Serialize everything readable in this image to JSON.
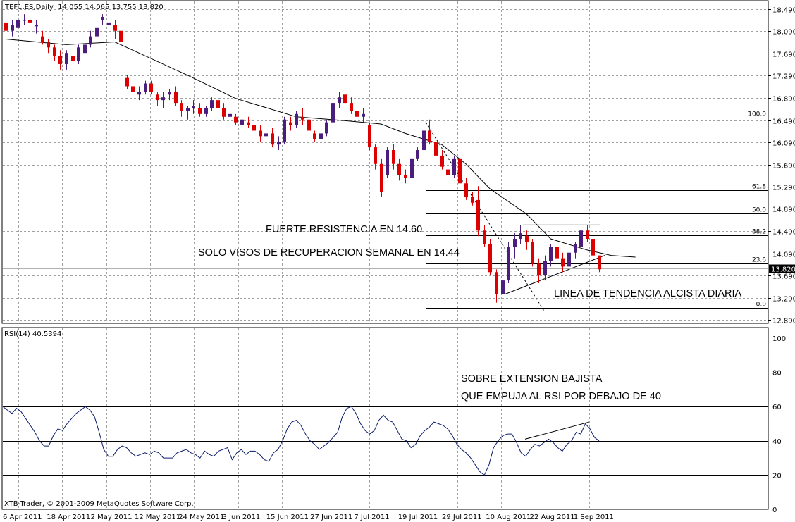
{
  "chart_data": [
    {
      "type": "candlestick",
      "header": {
        "symbol": "TEF1.ES,Daily",
        "ohlc": "14.055 14.065 13.755 13.820"
      },
      "price_axis": {
        "ylim": [
          12.89,
          18.49
        ],
        "ticks": [
          "18.490",
          "18.090",
          "17.690",
          "17.290",
          "16.890",
          "16.490",
          "16.090",
          "15.690",
          "15.290",
          "14.890",
          "14.490",
          "14.090",
          "13.690",
          "13.290",
          "12.890"
        ]
      },
      "last_price": {
        "label": "13.820",
        "value": 13.82
      },
      "date_labels": [
        "6 Apr 2011",
        "18 Apr 2011",
        "2 May 2011",
        "12 May 2011",
        "24 May 2011",
        "3 Jun 2011",
        "15 Jun 2011",
        "27 Jun 2011",
        "7 Jul 2011",
        "19 Jul 2011",
        "29 Jul 2011",
        "10 Aug 2011",
        "22 Aug 2011",
        "1 Sep 2011"
      ],
      "candles": [
        [
          18.25,
          18.35,
          17.95,
          18.1
        ],
        [
          18.1,
          18.3,
          18.0,
          18.2
        ],
        [
          18.15,
          18.35,
          18.1,
          18.3
        ],
        [
          18.3,
          18.4,
          18.2,
          18.3
        ],
        [
          18.3,
          18.35,
          18.1,
          18.25
        ],
        [
          18.2,
          18.3,
          18.05,
          18.2
        ],
        [
          18.0,
          18.1,
          17.85,
          17.9
        ],
        [
          17.9,
          17.95,
          17.7,
          17.8
        ],
        [
          17.8,
          17.85,
          17.55,
          17.65
        ],
        [
          17.65,
          17.75,
          17.4,
          17.5
        ],
        [
          17.5,
          17.75,
          17.4,
          17.7
        ],
        [
          17.65,
          17.7,
          17.45,
          17.55
        ],
        [
          17.55,
          17.85,
          17.5,
          17.8
        ],
        [
          17.7,
          17.9,
          17.65,
          17.85
        ],
        [
          17.85,
          18.1,
          17.8,
          18.0
        ],
        [
          18.0,
          18.2,
          17.95,
          18.15
        ],
        [
          18.3,
          18.4,
          18.2,
          18.35
        ],
        [
          18.2,
          18.3,
          18.05,
          18.25
        ],
        [
          18.2,
          18.3,
          17.95,
          18.1
        ],
        [
          18.1,
          18.15,
          17.8,
          17.9
        ],
        [
          17.25,
          17.3,
          17.05,
          17.1
        ],
        [
          17.1,
          17.2,
          16.9,
          17.0
        ],
        [
          16.95,
          17.1,
          16.85,
          17.0
        ],
        [
          17.0,
          17.2,
          16.95,
          17.15
        ],
        [
          17.15,
          17.2,
          16.95,
          17.0
        ],
        [
          16.95,
          17.0,
          16.75,
          16.85
        ],
        [
          16.85,
          17.0,
          16.7,
          16.9
        ],
        [
          16.95,
          17.05,
          16.85,
          17.0
        ],
        [
          17.0,
          17.1,
          16.75,
          16.8
        ],
        [
          16.8,
          16.85,
          16.55,
          16.65
        ],
        [
          16.65,
          16.75,
          16.5,
          16.7
        ],
        [
          16.7,
          16.85,
          16.6,
          16.75
        ],
        [
          16.7,
          16.8,
          16.55,
          16.6
        ],
        [
          16.6,
          16.75,
          16.55,
          16.7
        ],
        [
          16.7,
          16.9,
          16.65,
          16.85
        ],
        [
          16.85,
          16.95,
          16.6,
          16.7
        ],
        [
          16.7,
          16.8,
          16.5,
          16.55
        ],
        [
          16.55,
          16.65,
          16.45,
          16.6
        ],
        [
          16.55,
          16.6,
          16.4,
          16.45
        ],
        [
          16.4,
          16.55,
          16.35,
          16.5
        ],
        [
          16.45,
          16.55,
          16.35,
          16.4
        ],
        [
          16.4,
          16.45,
          16.25,
          16.3
        ],
        [
          16.3,
          16.4,
          16.1,
          16.2
        ],
        [
          16.2,
          16.35,
          16.1,
          16.25
        ],
        [
          16.25,
          16.35,
          16.0,
          16.05
        ],
        [
          16.05,
          16.2,
          15.95,
          16.1
        ],
        [
          16.1,
          16.55,
          16.05,
          16.5
        ],
        [
          16.45,
          16.55,
          16.3,
          16.4
        ],
        [
          16.4,
          16.65,
          16.35,
          16.6
        ],
        [
          16.55,
          16.7,
          16.4,
          16.5
        ],
        [
          16.5,
          16.55,
          16.2,
          16.3
        ],
        [
          16.25,
          16.3,
          16.1,
          16.15
        ],
        [
          16.15,
          16.3,
          16.05,
          16.25
        ],
        [
          16.25,
          16.5,
          16.2,
          16.45
        ],
        [
          16.45,
          16.85,
          16.4,
          16.8
        ],
        [
          16.8,
          17.0,
          16.7,
          16.9
        ],
        [
          16.95,
          17.05,
          16.75,
          16.8
        ],
        [
          16.8,
          16.9,
          16.6,
          16.65
        ],
        [
          16.65,
          16.75,
          16.5,
          16.55
        ],
        [
          16.55,
          16.7,
          16.45,
          16.6
        ],
        [
          16.4,
          16.45,
          15.95,
          16.0
        ],
        [
          16.0,
          16.05,
          15.6,
          15.7
        ],
        [
          15.7,
          15.8,
          15.1,
          15.2
        ],
        [
          15.5,
          16.0,
          15.45,
          15.95
        ],
        [
          15.95,
          16.05,
          15.6,
          15.7
        ],
        [
          15.7,
          15.8,
          15.4,
          15.5
        ],
        [
          15.5,
          15.6,
          15.35,
          15.45
        ],
        [
          15.45,
          15.85,
          15.4,
          15.8
        ],
        [
          15.8,
          16.0,
          15.75,
          15.95
        ],
        [
          15.95,
          16.4,
          15.9,
          16.3
        ],
        [
          16.3,
          16.5,
          16.05,
          16.1
        ],
        [
          16.1,
          16.2,
          15.8,
          15.85
        ],
        [
          15.85,
          15.95,
          15.6,
          15.65
        ],
        [
          15.6,
          15.7,
          15.4,
          15.5
        ],
        [
          15.5,
          15.85,
          15.45,
          15.8
        ],
        [
          15.8,
          15.85,
          15.3,
          15.35
        ],
        [
          15.35,
          15.45,
          15.05,
          15.1
        ],
        [
          15.1,
          15.2,
          14.95,
          15.0
        ],
        [
          15.05,
          15.3,
          14.4,
          14.5
        ],
        [
          14.5,
          14.6,
          14.2,
          14.25
        ],
        [
          14.25,
          14.35,
          13.7,
          13.75
        ],
        [
          13.75,
          13.8,
          13.2,
          13.35
        ],
        [
          13.35,
          13.75,
          13.3,
          13.6
        ],
        [
          13.6,
          14.3,
          13.55,
          14.2
        ],
        [
          14.2,
          14.45,
          14.0,
          14.35
        ],
        [
          14.35,
          14.6,
          14.25,
          14.45
        ],
        [
          14.4,
          14.5,
          14.15,
          14.3
        ],
        [
          14.3,
          14.35,
          13.85,
          13.9
        ],
        [
          13.9,
          14.0,
          13.55,
          13.7
        ],
        [
          13.7,
          14.05,
          13.6,
          13.95
        ],
        [
          13.95,
          14.25,
          13.85,
          14.2
        ],
        [
          14.2,
          14.35,
          13.95,
          14.0
        ],
        [
          14.0,
          14.1,
          13.75,
          13.85
        ],
        [
          13.85,
          14.15,
          13.8,
          14.1
        ],
        [
          14.1,
          14.3,
          14.0,
          14.25
        ],
        [
          14.2,
          14.55,
          14.15,
          14.5
        ],
        [
          14.5,
          14.6,
          14.3,
          14.35
        ],
        [
          14.35,
          14.4,
          14.0,
          14.05
        ],
        [
          14.05,
          14.05,
          13.75,
          13.8
        ]
      ],
      "moving_average": [
        [
          0,
          17.95
        ],
        [
          10,
          17.85
        ],
        [
          18,
          17.9
        ],
        [
          20,
          17.8
        ],
        [
          30,
          17.3
        ],
        [
          38,
          16.88
        ],
        [
          48,
          16.55
        ],
        [
          56,
          16.48
        ],
        [
          62,
          16.42
        ],
        [
          66,
          16.25
        ],
        [
          72,
          16.05
        ],
        [
          76,
          15.7
        ],
        [
          80,
          15.25
        ],
        [
          86,
          14.8
        ],
        [
          90,
          14.35
        ],
        [
          96,
          14.15
        ],
        [
          100,
          14.05
        ],
        [
          104,
          14.02
        ]
      ],
      "fibonacci": {
        "levels": [
          {
            "label": "100.0",
            "price": 16.54
          },
          {
            "label": "61.8",
            "price": 15.23
          },
          {
            "label": "50.0",
            "price": 14.81
          },
          {
            "label": "38.2",
            "price": 14.41
          },
          {
            "label": "23.6",
            "price": 13.9
          },
          {
            "label": "0.0",
            "price": 13.1
          }
        ]
      },
      "annotations": [
        "FUERTE RESISTENCIA EN 14.60",
        "SOLO VISOS DE RECUPERACION SEMANAL EN 14.44",
        "LINEA DE TENDENCIA ALCISTA DIARIA"
      ],
      "colors": {
        "up": "#4b1e7e",
        "down": "#dd0000",
        "ma": "#000000",
        "grid": "#a0a0a0",
        "last_price_bg": "#000000"
      }
    },
    {
      "type": "line",
      "name": "RSI(14) 40.5394",
      "ylim": [
        0,
        100
      ],
      "levels": [
        "80",
        "60",
        "40",
        "20"
      ],
      "tick_labels": [
        "100",
        "80",
        "60",
        "40",
        "20",
        "0"
      ],
      "values": [
        60,
        58,
        56,
        59,
        57,
        53,
        49,
        45,
        40,
        37,
        37,
        43,
        47,
        46,
        50,
        53,
        56,
        58,
        60,
        58,
        54,
        45,
        35,
        31,
        31,
        35,
        37,
        36,
        33,
        31,
        32,
        33,
        32,
        34,
        33,
        30,
        30,
        30,
        33,
        34,
        35,
        33,
        32,
        30,
        34,
        32,
        31,
        34,
        35,
        36,
        29,
        33,
        35,
        32,
        34,
        34,
        32,
        29,
        28,
        33,
        35,
        40,
        47,
        51,
        52,
        49,
        44,
        40,
        38,
        35,
        37,
        39,
        42,
        45,
        54,
        59,
        60,
        56,
        50,
        46,
        44,
        46,
        52,
        55,
        52,
        51,
        46,
        41,
        40,
        36,
        38,
        43,
        46,
        48,
        51,
        50,
        49,
        47,
        43,
        38,
        35,
        33,
        30,
        26,
        22,
        20,
        26,
        36,
        40,
        43,
        44,
        44,
        39,
        33,
        31,
        35,
        38,
        37,
        39,
        41,
        39,
        36,
        34,
        38,
        40,
        45,
        44,
        50,
        47,
        42,
        40
      ],
      "color": "#0a1a6a",
      "annotation_lines": [
        "SOBRE EXTENSION BAJISTA",
        "QUE EMPUJA AL RSI POR DEBAJO DE 40"
      ]
    }
  ],
  "footer": {
    "copyright": "XTB-Trader, © 2001-2009 MetaQuotes Software Corp."
  }
}
